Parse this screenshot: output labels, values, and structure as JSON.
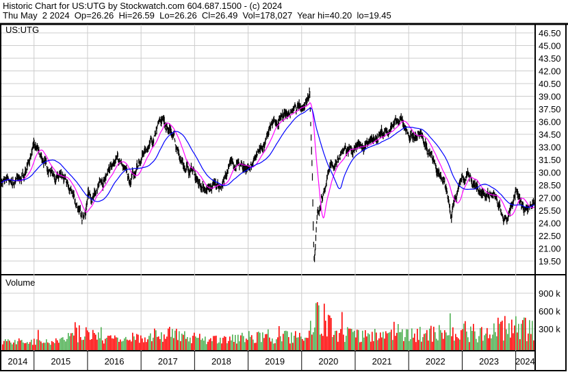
{
  "header": {
    "title": "Historic Chart for US:UTG by Stockwatch.com 604.687.1500 - (c) 2024",
    "quote": "Thu May  2 2024  Op=26.26  Hi=26.59  Lo=26.26  Cl=26.49  Vol=178,027  Year hi=40.20  lo=19.45"
  },
  "chart_data": {
    "type": "line",
    "symbol": "US:UTG",
    "price_axis": {
      "ticks": [
        "46.50",
        "45.00",
        "43.50",
        "42.00",
        "40.50",
        "39.00",
        "37.50",
        "36.00",
        "34.50",
        "33.00",
        "31.50",
        "30.00",
        "28.50",
        "27.00",
        "25.50",
        "24.00",
        "22.50",
        "21.00",
        "19.50"
      ],
      "range": [
        18.5,
        47.5
      ]
    },
    "volume_panel": {
      "label": "Volume",
      "ticks": [
        "900 k",
        "600 k",
        "300 k"
      ],
      "range": [
        0,
        1100000
      ]
    },
    "x_axis": {
      "years": [
        "2014",
        "2015",
        "2016",
        "2017",
        "2018",
        "2019",
        "2020",
        "2021",
        "2022",
        "2023",
        "2024"
      ],
      "range": [
        2014.39,
        2024.35
      ]
    },
    "grid": true,
    "colors": {
      "price": "#000000",
      "ma_short": "#ff00ff",
      "ma_long": "#0000ff",
      "vol_up": "#4caf50",
      "vol_down": "#ff0000"
    },
    "price_points": [
      [
        2014.39,
        29
      ],
      [
        2014.6,
        28.8
      ],
      [
        2014.8,
        29.5
      ],
      [
        2015.0,
        33
      ],
      [
        2015.2,
        31
      ],
      [
        2015.5,
        29
      ],
      [
        2015.7,
        28
      ],
      [
        2015.9,
        24
      ],
      [
        2016.0,
        27
      ],
      [
        2016.3,
        28.5
      ],
      [
        2016.5,
        32
      ],
      [
        2016.8,
        29
      ],
      [
        2017.0,
        31.5
      ],
      [
        2017.2,
        34
      ],
      [
        2017.4,
        36
      ],
      [
        2017.6,
        35
      ],
      [
        2017.75,
        31
      ],
      [
        2018.0,
        30
      ],
      [
        2018.15,
        28
      ],
      [
        2018.5,
        28.5
      ],
      [
        2018.7,
        31
      ],
      [
        2019.0,
        30.5
      ],
      [
        2019.2,
        32
      ],
      [
        2019.45,
        35.5
      ],
      [
        2019.7,
        37
      ],
      [
        2020.0,
        37.5
      ],
      [
        2020.15,
        40
      ],
      [
        2020.2,
        30
      ],
      [
        2020.23,
        19.6
      ],
      [
        2020.3,
        25
      ],
      [
        2020.5,
        30
      ],
      [
        2020.8,
        32.5
      ],
      [
        2021.0,
        32.5
      ],
      [
        2021.3,
        33.5
      ],
      [
        2021.6,
        35
      ],
      [
        2021.85,
        36
      ],
      [
        2022.0,
        34.5
      ],
      [
        2022.3,
        34
      ],
      [
        2022.5,
        31
      ],
      [
        2022.65,
        29
      ],
      [
        2022.8,
        24.8
      ],
      [
        2022.95,
        29
      ],
      [
        2023.1,
        30
      ],
      [
        2023.3,
        28
      ],
      [
        2023.6,
        27
      ],
      [
        2023.8,
        23.8
      ],
      [
        2023.95,
        26
      ],
      [
        2024.0,
        27.3
      ],
      [
        2024.15,
        25.8
      ],
      [
        2024.35,
        26.5
      ]
    ],
    "volume_levels": [
      [
        2014.39,
        80000
      ],
      [
        2015.5,
        90000
      ],
      [
        2015.9,
        250000
      ],
      [
        2016.3,
        110000
      ],
      [
        2017.0,
        150000
      ],
      [
        2017.5,
        220000
      ],
      [
        2018.0,
        140000
      ],
      [
        2018.5,
        120000
      ],
      [
        2019.0,
        150000
      ],
      [
        2019.5,
        160000
      ],
      [
        2020.0,
        170000
      ],
      [
        2020.25,
        600000
      ],
      [
        2020.6,
        250000
      ],
      [
        2021.0,
        200000
      ],
      [
        2021.5,
        180000
      ],
      [
        2022.0,
        190000
      ],
      [
        2022.8,
        240000
      ],
      [
        2023.3,
        230000
      ],
      [
        2023.9,
        330000
      ],
      [
        2024.35,
        260000
      ]
    ]
  }
}
